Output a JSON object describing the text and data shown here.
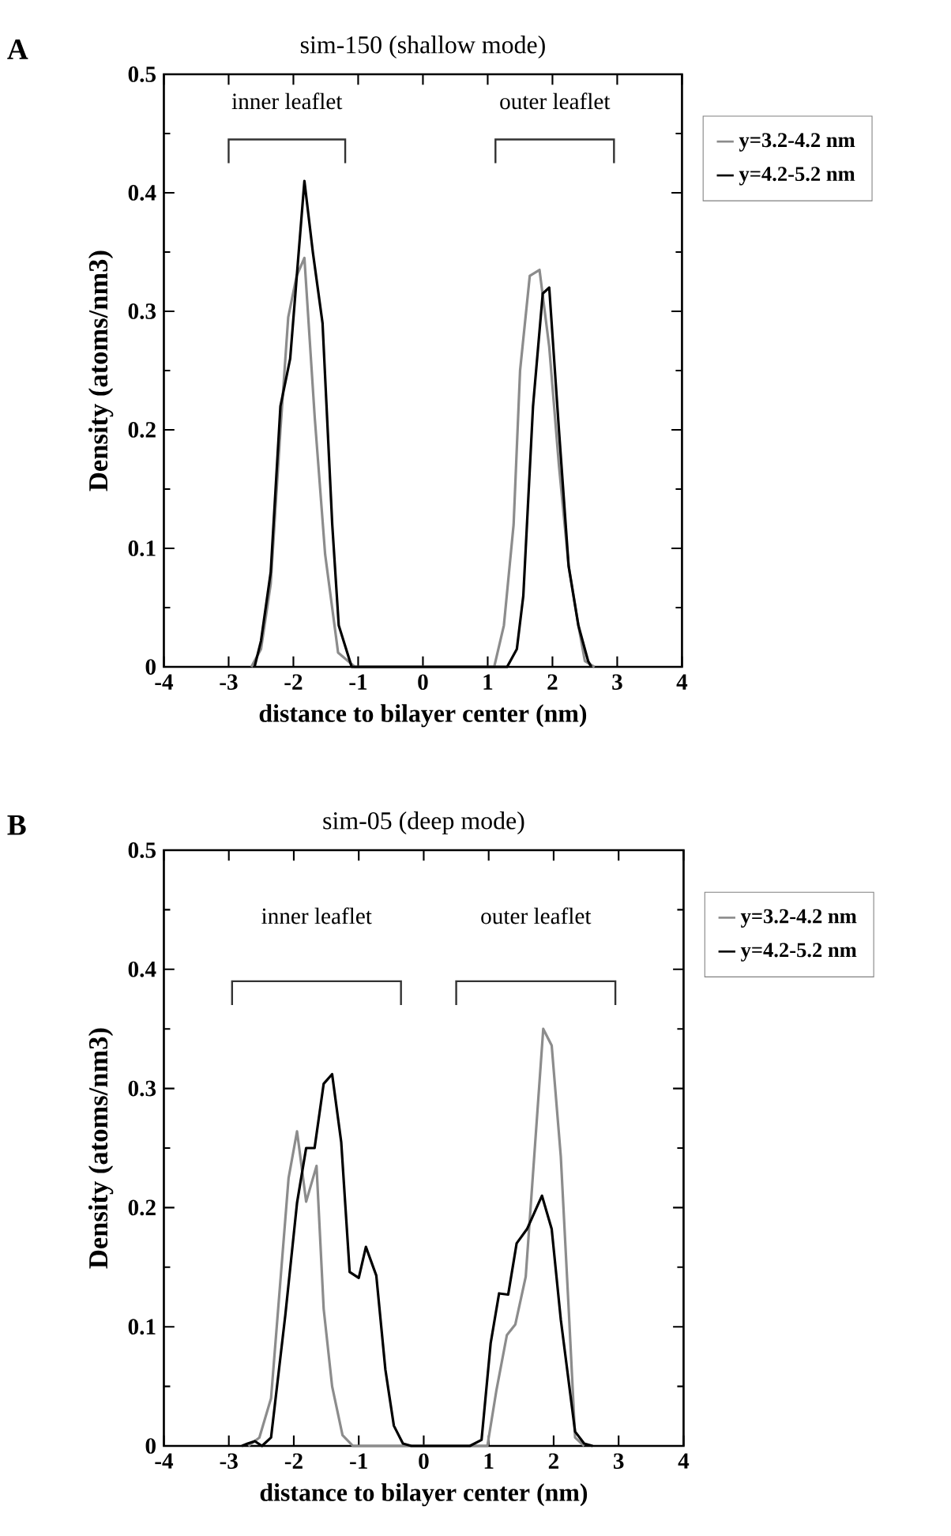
{
  "chart_data": [
    {
      "type": "line",
      "title": "sim-150 (shallow mode)",
      "xlabel": "distance to bilayer center (nm)",
      "ylabel": "Density (atoms/nm3)",
      "annotations": [
        "A",
        "inner leaflet",
        "outer leaflet"
      ],
      "xlim": [
        -4,
        4
      ],
      "xticks": [
        -4,
        -3,
        -2,
        -1,
        0,
        1,
        2,
        3,
        4
      ],
      "ylim": [
        0,
        0.5
      ],
      "yticks": [
        0,
        0.1,
        0.2,
        0.3,
        0.4,
        0.5
      ],
      "grid": false,
      "legend": "right",
      "series": [
        {
          "name": "y=3.2-4.2 nm",
          "color": "#8c8c8c",
          "x": [
            -2.65,
            -2.5,
            -2.35,
            -2.2,
            -2.08,
            -1.95,
            -1.83,
            -1.67,
            -1.51,
            -1.31,
            -1.05,
            1.1,
            1.25,
            1.4,
            1.5,
            1.65,
            1.8,
            1.95,
            2.1,
            2.25,
            2.4,
            2.5,
            2.65
          ],
          "values": [
            0,
            0.015,
            0.07,
            0.2,
            0.295,
            0.33,
            0.345,
            0.21,
            0.095,
            0.012,
            0,
            0,
            0.035,
            0.12,
            0.25,
            0.33,
            0.335,
            0.27,
            0.17,
            0.085,
            0.035,
            0.005,
            0
          ]
        },
        {
          "name": "y=4.2-5.2 nm",
          "color": "#000000",
          "x": [
            -2.6,
            -2.5,
            -2.35,
            -2.2,
            -2.05,
            -1.83,
            -1.7,
            -1.55,
            -1.4,
            -1.3,
            -1.1,
            1.3,
            1.45,
            1.55,
            1.7,
            1.85,
            1.95,
            2.1,
            2.25,
            2.4,
            2.55,
            2.6
          ],
          "values": [
            0,
            0.022,
            0.08,
            0.22,
            0.26,
            0.41,
            0.35,
            0.29,
            0.12,
            0.035,
            0,
            0,
            0.015,
            0.06,
            0.22,
            0.315,
            0.32,
            0.2,
            0.085,
            0.035,
            0.005,
            0
          ]
        }
      ]
    },
    {
      "type": "line",
      "title": "sim-05 (deep mode)",
      "xlabel": "distance to bilayer center (nm)",
      "ylabel": "Density (atoms/nm3)",
      "annotations": [
        "B",
        "inner leaflet",
        "outer leaflet"
      ],
      "xlim": [
        -4,
        4
      ],
      "xticks": [
        -4,
        -3,
        -2,
        -1,
        0,
        1,
        2,
        3,
        4
      ],
      "ylim": [
        0,
        0.5
      ],
      "yticks": [
        0,
        0.1,
        0.2,
        0.3,
        0.4,
        0.5
      ],
      "grid": false,
      "legend": "right",
      "series": [
        {
          "name": "y=3.2-4.2 nm",
          "color": "#8c8c8c",
          "x": [
            -2.7,
            -2.53,
            -2.35,
            -2.08,
            -1.95,
            -1.81,
            -1.65,
            -1.54,
            -1.41,
            -1.25,
            -1.09,
            0.98,
            1.12,
            1.28,
            1.41,
            1.57,
            1.84,
            1.97,
            2.11,
            2.24,
            2.33,
            2.47
          ],
          "values": [
            0,
            0.007,
            0.04,
            0.225,
            0.264,
            0.205,
            0.235,
            0.115,
            0.05,
            0.009,
            0,
            0,
            0.047,
            0.093,
            0.102,
            0.142,
            0.35,
            0.336,
            0.243,
            0.106,
            0.007,
            0
          ]
        },
        {
          "name": "y=4.2-5.2 nm",
          "color": "#000000",
          "x": [
            -2.8,
            -2.71,
            -2.6,
            -2.49,
            -2.35,
            -2.13,
            -1.95,
            -1.81,
            -1.68,
            -1.54,
            -1.41,
            -1.27,
            -1.14,
            -1.0,
            -0.89,
            -0.73,
            -0.59,
            -0.46,
            -0.32,
            -0.19,
            0.71,
            0.89,
            1.03,
            1.16,
            1.3,
            1.43,
            1.59,
            1.82,
            1.97,
            2.11,
            2.33,
            2.47,
            2.6
          ],
          "values": [
            0,
            0.002,
            0.004,
            0,
            0.007,
            0.11,
            0.204,
            0.25,
            0.25,
            0.304,
            0.312,
            0.255,
            0.146,
            0.141,
            0.167,
            0.143,
            0.064,
            0.017,
            0.002,
            0,
            0,
            0.005,
            0.086,
            0.128,
            0.127,
            0.17,
            0.182,
            0.21,
            0.182,
            0.106,
            0.012,
            0.002,
            0
          ]
        }
      ]
    }
  ]
}
